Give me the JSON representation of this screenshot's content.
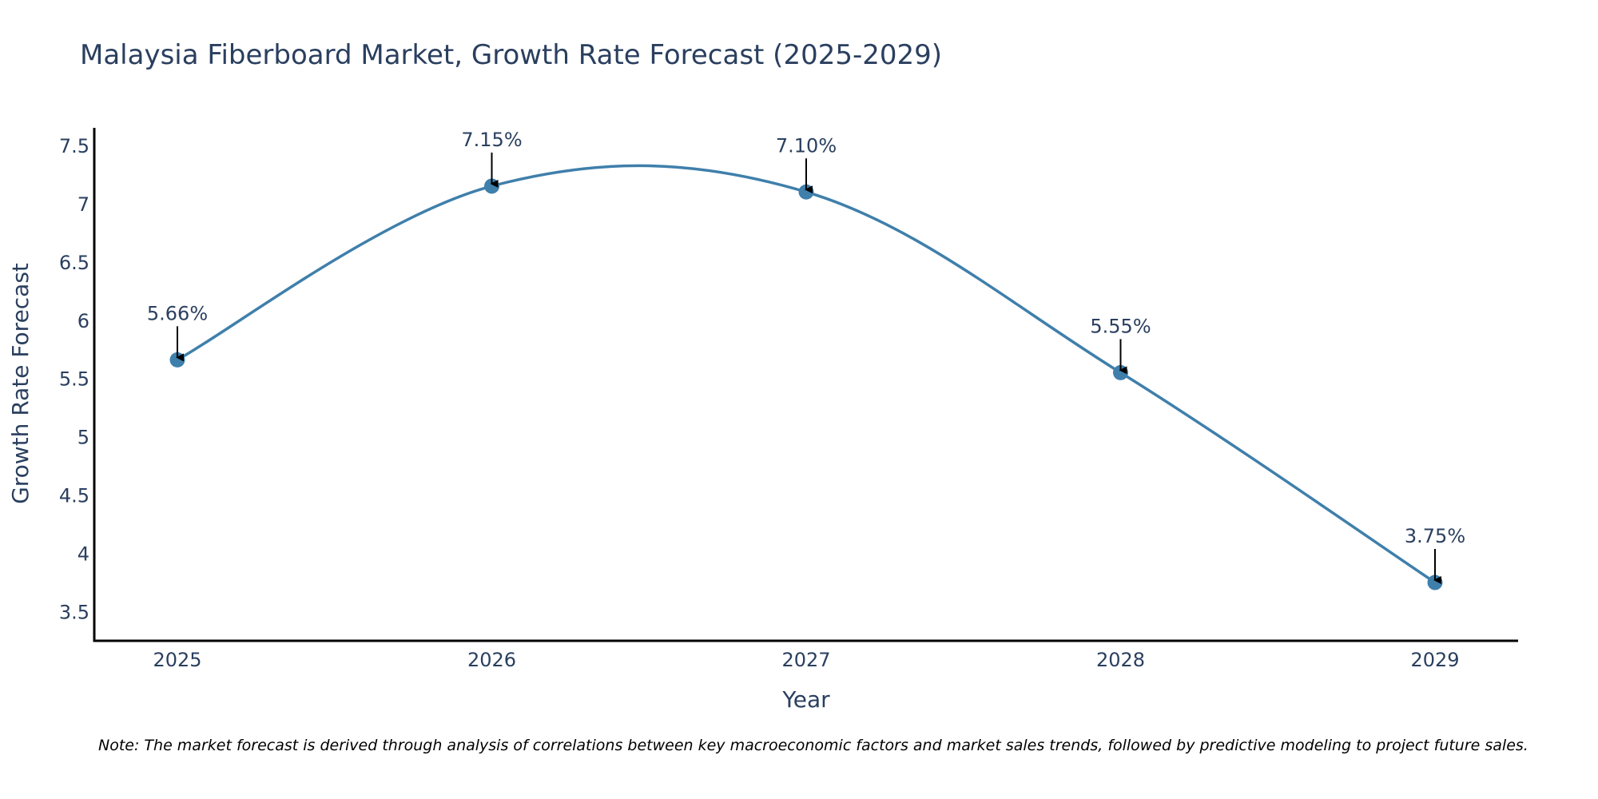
{
  "colors": {
    "line": "#3f7fab",
    "marker": "#3f7fab",
    "axis": "#000000",
    "arrow": "#000000",
    "text": "#2a3f5f"
  },
  "chart_data": {
    "type": "line",
    "title": "Malaysia Fiberboard Market, Growth Rate Forecast (2025-2029)",
    "xlabel": "Year",
    "ylabel": "Growth Rate Forecast",
    "categories": [
      "2025",
      "2026",
      "2027",
      "2028",
      "2029"
    ],
    "values": [
      5.66,
      7.15,
      7.1,
      5.55,
      3.75
    ],
    "data_labels": [
      "5.66%",
      "7.15%",
      "7.10%",
      "5.55%",
      "3.75%"
    ],
    "yticks": [
      3.5,
      4,
      4.5,
      5,
      5.5,
      6,
      6.5,
      7,
      7.5
    ],
    "ytick_labels": [
      "3.5",
      "4",
      "4.5",
      "5",
      "5.5",
      "6",
      "6.5",
      "7",
      "7.5"
    ],
    "ylim": [
      3.25,
      7.65
    ],
    "line_shape": "spline",
    "grid": false,
    "legend": "none"
  },
  "note": "Note: The market forecast is derived through analysis of correlations between key macroeconomic factors and market sales trends, followed by predictive modeling to project future sales."
}
